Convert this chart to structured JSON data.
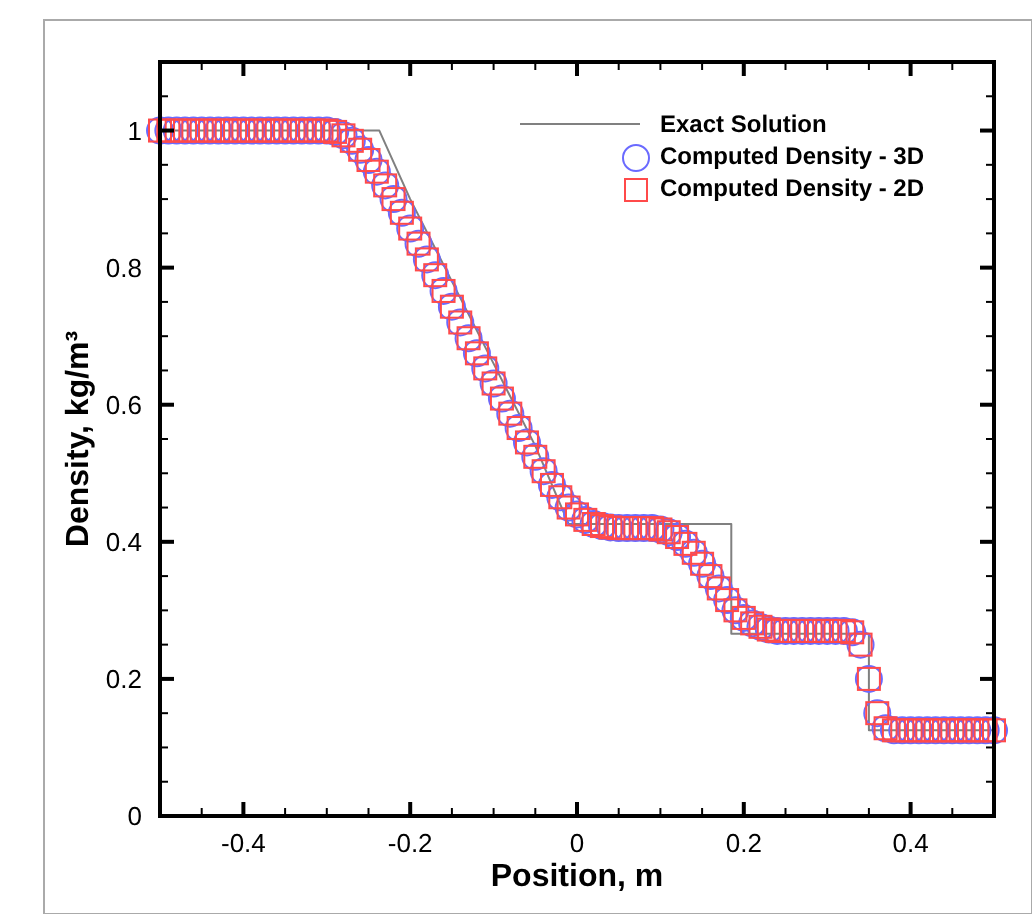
{
  "chart_data": {
    "type": "scatter",
    "xlabel": "Position, m",
    "ylabel": "Density, kg/m³",
    "xlim": [
      -0.5,
      0.5
    ],
    "ylim": [
      0,
      1.1
    ],
    "xticks": [
      {
        "value": -0.5,
        "label": null
      },
      {
        "value": -0.45,
        "label": null
      },
      -0.4,
      {
        "value": -0.35,
        "label": null
      },
      {
        "value": -0.3,
        "label": null
      },
      {
        "value": -0.25,
        "label": null
      },
      -0.2,
      {
        "value": -0.15,
        "label": null
      },
      {
        "value": -0.1,
        "label": null
      },
      {
        "value": -0.05,
        "label": null
      },
      0,
      {
        "value": 0.05,
        "label": null
      },
      {
        "value": 0.1,
        "label": null
      },
      {
        "value": 0.15,
        "label": null
      },
      0.2,
      {
        "value": 0.25,
        "label": null
      },
      {
        "value": 0.3,
        "label": null
      },
      {
        "value": 0.35,
        "label": null
      },
      0.4,
      {
        "value": 0.45,
        "label": null
      },
      {
        "value": 0.5,
        "label": null
      }
    ],
    "yticks": [
      0,
      {
        "value": 0.05,
        "label": null
      },
      {
        "value": 0.1,
        "label": null
      },
      {
        "value": 0.15,
        "label": null
      },
      0.2,
      {
        "value": 0.25,
        "label": null
      },
      {
        "value": 0.3,
        "label": null
      },
      {
        "value": 0.35,
        "label": null
      },
      0.4,
      {
        "value": 0.45,
        "label": null
      },
      {
        "value": 0.5,
        "label": null
      },
      {
        "value": 0.55,
        "label": null
      },
      0.6,
      {
        "value": 0.65,
        "label": null
      },
      {
        "value": 0.7,
        "label": null
      },
      {
        "value": 0.75,
        "label": null
      },
      0.8,
      {
        "value": 0.85,
        "label": null
      },
      {
        "value": 0.9,
        "label": null
      },
      {
        "value": 0.95,
        "label": null
      },
      1,
      {
        "value": 1.05,
        "label": null
      },
      {
        "value": 1.1,
        "label": null
      }
    ],
    "grid": false,
    "legend": "top right",
    "x": [
      -0.5,
      -0.49,
      -0.48,
      -0.47,
      -0.46,
      -0.45,
      -0.44,
      -0.43,
      -0.42,
      -0.41,
      -0.4,
      -0.39,
      -0.38,
      -0.37,
      -0.36,
      -0.35,
      -0.34,
      -0.33,
      -0.32,
      -0.31,
      -0.3,
      -0.29,
      -0.28,
      -0.27,
      -0.26,
      -0.25,
      -0.24,
      -0.23,
      -0.22,
      -0.21,
      -0.2,
      -0.19,
      -0.18,
      -0.17,
      -0.16,
      -0.15,
      -0.14,
      -0.13,
      -0.12,
      -0.11,
      -0.1,
      -0.09,
      -0.08,
      -0.07,
      -0.06,
      -0.05,
      -0.04,
      -0.03,
      -0.02,
      -0.01,
      0,
      0.01,
      0.02,
      0.03,
      0.04,
      0.05,
      0.06,
      0.07,
      0.08,
      0.09,
      0.1,
      0.11,
      0.12,
      0.13,
      0.14,
      0.15,
      0.16,
      0.17,
      0.18,
      0.19,
      0.2,
      0.21,
      0.22,
      0.23,
      0.24,
      0.25,
      0.26,
      0.27,
      0.28,
      0.29,
      0.3,
      0.31,
      0.32,
      0.33,
      0.34,
      0.35,
      0.36,
      0.37,
      0.38,
      0.39,
      0.4,
      0.41,
      0.42,
      0.43,
      0.44,
      0.45,
      0.46,
      0.47,
      0.48,
      0.49,
      0.5
    ],
    "series": [
      {
        "name": "Exact Solution",
        "type": "line",
        "marker": "none",
        "color": "#808080",
        "x": [
          -0.5,
          -0.237,
          -0.2,
          -0.15,
          -0.1,
          -0.05,
          -0.01,
          0.185,
          0.185,
          0.35,
          0.35,
          0.5
        ],
        "values": [
          1,
          1,
          0.9,
          0.78,
          0.66,
          0.54,
          0.426,
          0.426,
          0.266,
          0.266,
          0.125,
          0.125
        ]
      },
      {
        "name": "Computed Density - 3D",
        "marker": "circle",
        "color": "#6a6aff",
        "values": [
          1,
          1,
          1,
          1,
          1,
          1,
          1,
          1,
          1,
          1,
          1,
          1,
          1,
          1,
          1,
          1,
          1,
          1,
          1,
          1,
          1,
          0.998,
          0.993,
          0.985,
          0.972,
          0.957,
          0.94,
          0.92,
          0.9,
          0.88,
          0.857,
          0.835,
          0.812,
          0.789,
          0.766,
          0.743,
          0.72,
          0.697,
          0.675,
          0.653,
          0.631,
          0.609,
          0.587,
          0.566,
          0.545,
          0.524,
          0.503,
          0.483,
          0.465,
          0.45,
          0.44,
          0.432,
          0.426,
          0.423,
          0.421,
          0.42,
          0.42,
          0.42,
          0.42,
          0.42,
          0.418,
          0.414,
          0.407,
          0.397,
          0.384,
          0.368,
          0.35,
          0.332,
          0.315,
          0.3,
          0.289,
          0.281,
          0.276,
          0.272,
          0.27,
          0.27,
          0.27,
          0.27,
          0.27,
          0.27,
          0.27,
          0.27,
          0.27,
          0.268,
          0.25,
          0.2,
          0.15,
          0.128,
          0.125,
          0.125,
          0.125,
          0.125,
          0.125,
          0.125,
          0.125,
          0.125,
          0.125,
          0.125,
          0.125,
          0.125,
          0.125
        ]
      },
      {
        "name": "Computed Density - 2D",
        "marker": "square",
        "color": "#ff4a4a",
        "values": [
          1,
          1,
          1,
          1,
          1,
          1,
          1,
          1,
          1,
          1,
          1,
          1,
          1,
          1,
          1,
          1,
          1,
          1,
          1,
          1,
          1,
          0.998,
          0.993,
          0.985,
          0.972,
          0.957,
          0.94,
          0.92,
          0.9,
          0.88,
          0.857,
          0.835,
          0.812,
          0.789,
          0.766,
          0.743,
          0.72,
          0.697,
          0.675,
          0.653,
          0.631,
          0.609,
          0.587,
          0.566,
          0.545,
          0.524,
          0.503,
          0.483,
          0.465,
          0.45,
          0.44,
          0.432,
          0.426,
          0.423,
          0.421,
          0.42,
          0.42,
          0.42,
          0.42,
          0.42,
          0.418,
          0.414,
          0.407,
          0.397,
          0.384,
          0.368,
          0.35,
          0.332,
          0.315,
          0.3,
          0.289,
          0.281,
          0.276,
          0.272,
          0.27,
          0.27,
          0.27,
          0.27,
          0.27,
          0.27,
          0.27,
          0.27,
          0.27,
          0.268,
          0.25,
          0.2,
          0.15,
          0.128,
          0.125,
          0.125,
          0.125,
          0.125,
          0.125,
          0.125,
          0.125,
          0.125,
          0.125,
          0.125,
          0.125,
          0.125,
          0.125
        ]
      }
    ]
  }
}
